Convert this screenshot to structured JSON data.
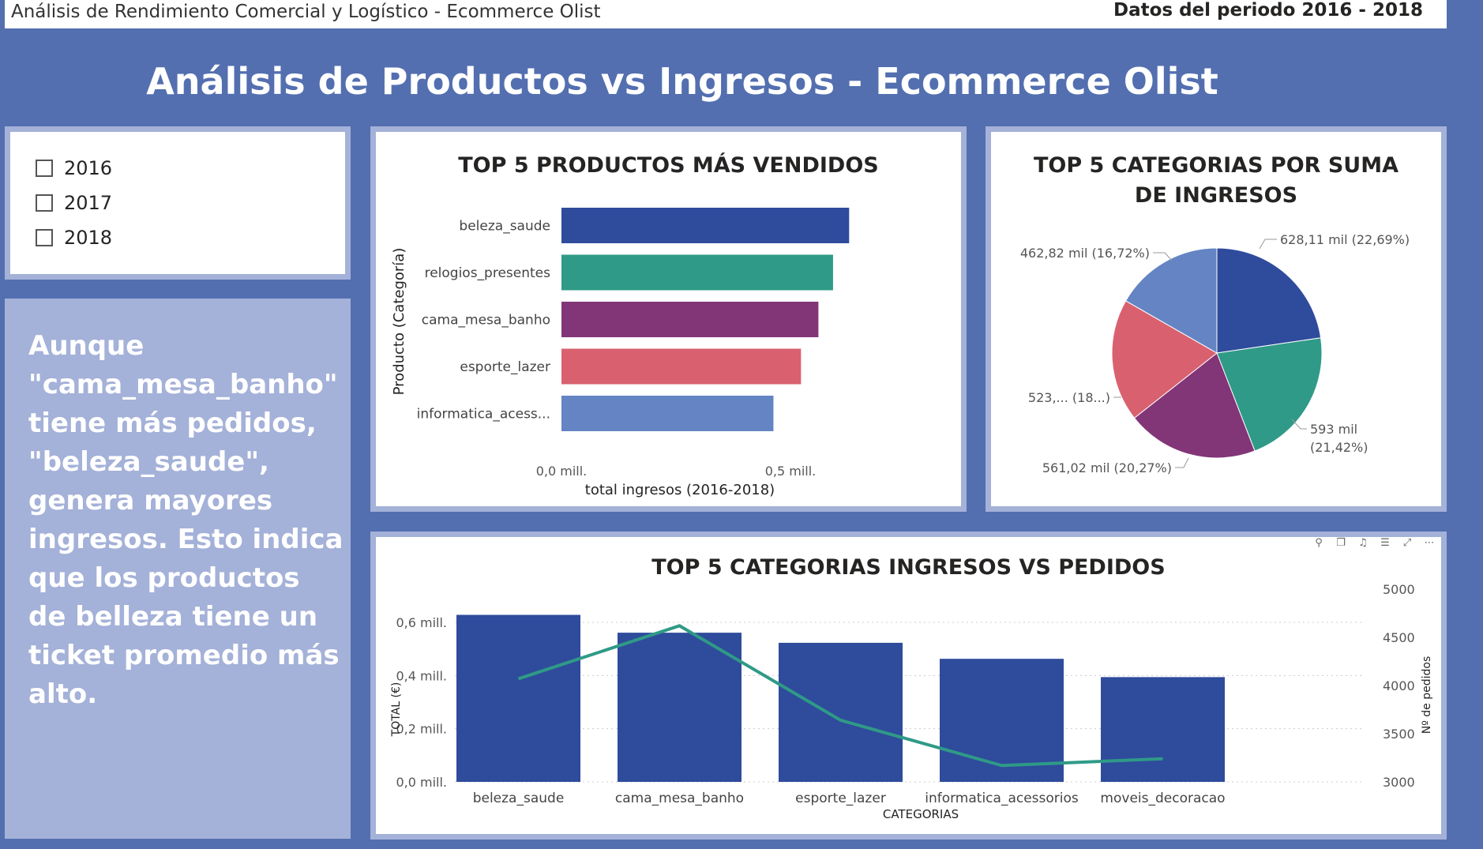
{
  "header": {
    "left_title": "Análisis de Rendimiento Comercial y Logístico - Ecommerce Olist",
    "period": "Datos del periodo 2016 - 2018"
  },
  "page_title": "Análisis de Productos vs Ingresos - Ecommerce Olist",
  "slicer": {
    "options": [
      "2016",
      "2017",
      "2018"
    ]
  },
  "insight_text": "Aunque \"cama_mesa_banho\" tiene más pedidos, \"beleza_saude\", genera mayores ingresos. Esto indica que los productos de belleza tiene un ticket promedio más alto.",
  "visual_header_icons": [
    "pin-icon",
    "copy-icon",
    "alert-icon",
    "filter-icon",
    "focus-icon",
    "more-icon"
  ],
  "chart_data": [
    {
      "type": "bar",
      "orientation": "horizontal",
      "title": "TOP 5 PRODUCTOS MÁS VENDIDOS",
      "ylabel": "Producto (Categoría)",
      "xlabel": "total ingresos (2016-2018)",
      "categories": [
        "beleza_saude",
        "relogios_presentes",
        "cama_mesa_banho",
        "esporte_lazer",
        "informatica_acess..."
      ],
      "values": [
        628110,
        593000,
        561020,
        523000,
        462820
      ],
      "colors": [
        "#2f4b9c",
        "#2f9a87",
        "#823577",
        "#d9616f",
        "#6484c4"
      ],
      "xticks": [
        "0,0 mill.",
        "0,5 mill."
      ],
      "xlim": [
        0,
        1000000
      ]
    },
    {
      "type": "pie",
      "title": "TOP 5 CATEGORIAS POR SUMA DE INGRESOS",
      "slices": [
        {
          "value": 628.11,
          "percent": 22.69,
          "label": "628,11 mil (22,69%)",
          "color": "#2f4b9c"
        },
        {
          "value": 593,
          "percent": 21.42,
          "label_line1": "593 mil",
          "label_line2": "(21,42%)",
          "color": "#2f9a87"
        },
        {
          "value": 561.02,
          "percent": 20.27,
          "label": "561,02 mil (20,27%)",
          "color": "#823577"
        },
        {
          "value": 523,
          "percent": 18.9,
          "label": "523,... (18...)",
          "color": "#d9616f"
        },
        {
          "value": 462.82,
          "percent": 16.72,
          "label": "462,82 mil (16,72%)",
          "color": "#6484c4"
        }
      ]
    },
    {
      "type": "bar",
      "title": "TOP 5 CATEGORIAS INGRESOS VS PEDIDOS",
      "xlabel": "CATEGORIAS",
      "ylabel": "TOTAL (€)",
      "y2label": "Nº de pedidos",
      "categories": [
        "beleza_saude",
        "cama_mesa_banho",
        "esporte_lazer",
        "informatica_acessorios",
        "moveis_decoracao"
      ],
      "series": [
        {
          "name": "TOTAL (€)",
          "type": "bar",
          "values": [
            628110,
            561020,
            523000,
            462820,
            394000
          ],
          "color": "#2f4b9c"
        },
        {
          "name": "Nº de pedidos",
          "type": "line",
          "axis": "right",
          "values": [
            4070,
            4620,
            3640,
            3170,
            3240
          ],
          "color": "#2f9a87"
        }
      ],
      "ylim": [
        0,
        600000
      ],
      "yticks": [
        "0,0 mill.",
        "0,2 mill.",
        "0,4 mill.",
        "0,6 mill."
      ],
      "y2lim": [
        3000,
        5000
      ],
      "y2ticks": [
        "3000",
        "3500",
        "4000",
        "4500",
        "5000"
      ]
    }
  ]
}
